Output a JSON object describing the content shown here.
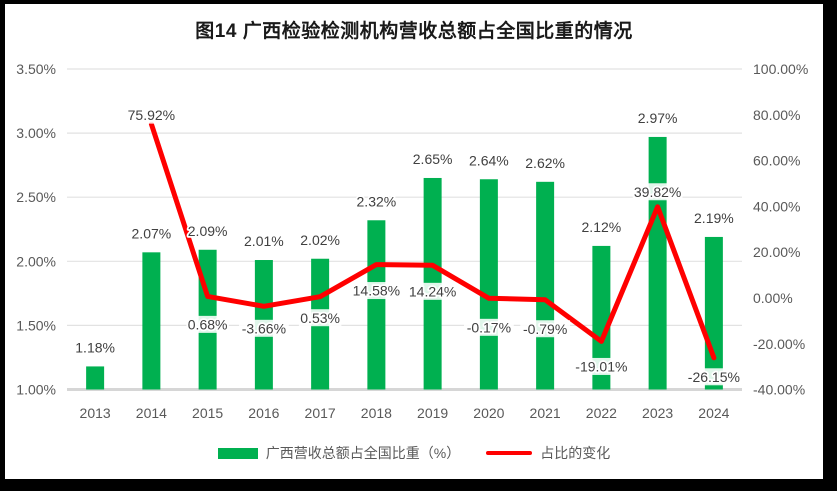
{
  "title": "图14 广西检验检测机构营收总额占全国比重的情况",
  "colors": {
    "bar": "#00B050",
    "line": "#FF0000",
    "gridline": "#E2E2E2",
    "axis_line": "#D6D6D6",
    "axis_text": "#595959",
    "data_label_text": "#404040",
    "background": "#FFFFFF",
    "frame": "#000000"
  },
  "legend": {
    "items": [
      {
        "label": "广西营收总额占全国比重（%）",
        "type": "bar"
      },
      {
        "label": "占比的变化",
        "type": "line"
      }
    ]
  },
  "chart_data": {
    "type": "combo",
    "title": "图14 广西检验检测机构营收总额占全国比重的情况",
    "categories": [
      "2013",
      "2014",
      "2015",
      "2016",
      "2017",
      "2018",
      "2019",
      "2020",
      "2021",
      "2022",
      "2023",
      "2024"
    ],
    "series": [
      {
        "name": "广西营收总额占全国比重（%）",
        "type": "bar",
        "axis": "left",
        "values": [
          1.18,
          2.07,
          2.09,
          2.01,
          2.02,
          2.32,
          2.65,
          2.64,
          2.62,
          2.12,
          2.97,
          2.19
        ],
        "labels": [
          "1.18%",
          "2.07%",
          "2.09%",
          "2.01%",
          "2.02%",
          "2.32%",
          "2.65%",
          "2.64%",
          "2.62%",
          "2.12%",
          "2.97%",
          "2.19%"
        ]
      },
      {
        "name": "占比的变化",
        "type": "line",
        "axis": "right",
        "values": [
          null,
          75.92,
          0.68,
          -3.66,
          0.53,
          14.58,
          14.24,
          -0.17,
          -0.79,
          -19.01,
          39.82,
          -26.15
        ],
        "labels": [
          null,
          "75.92%",
          "0.68%",
          "-3.66%",
          "0.53%",
          "14.58%",
          "14.24%",
          "-0.17%",
          "-0.79%",
          "-19.01%",
          "39.82%",
          "-26.15%"
        ]
      }
    ],
    "left_axis": {
      "min": 1.0,
      "max": 3.5,
      "ticks": [
        "3.50%",
        "3.00%",
        "2.50%",
        "2.00%",
        "1.50%",
        "1.00%"
      ],
      "tick_values": [
        3.5,
        3.0,
        2.5,
        2.0,
        1.5,
        1.0
      ]
    },
    "right_axis": {
      "min": -40,
      "max": 100,
      "ticks": [
        "100.00%",
        "80.00%",
        "60.00%",
        "40.00%",
        "20.00%",
        "0.00%",
        "-20.00%",
        "-40.00%"
      ],
      "tick_values": [
        100,
        80,
        60,
        40,
        20,
        0,
        -20,
        -40
      ]
    },
    "grid": "horizontal",
    "legend_position": "bottom"
  }
}
